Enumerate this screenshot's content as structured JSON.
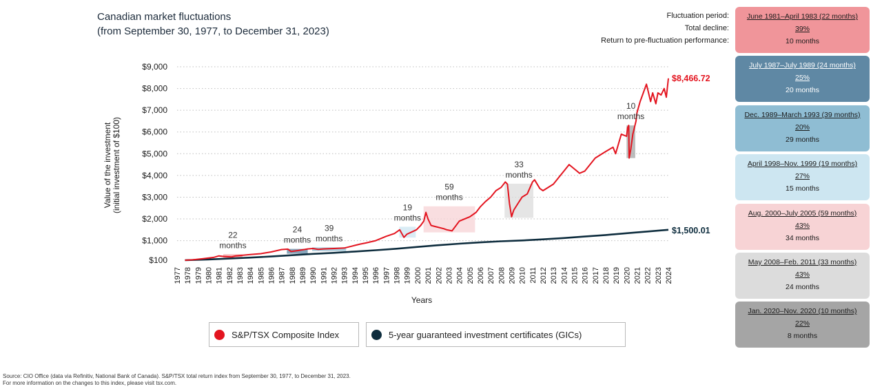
{
  "title": {
    "line1": "Canadian market fluctuations",
    "line2": "(from September 30, 1977, to December 31, 2023)"
  },
  "header_labels": {
    "period": "Fluctuation period:",
    "decline": "Total decline:",
    "return": "Return to pre-fluctuation performance:"
  },
  "fluctuation_boxes": [
    {
      "period": "June 1981–April 1983 (22 months)",
      "decline": "39%",
      "return": "10 months",
      "color": "#f0959a",
      "dark": false
    },
    {
      "period": "July 1987–July 1989 (24 months)",
      "decline": "25%",
      "return": "20 months",
      "color": "#5f88a4",
      "dark": true
    },
    {
      "period": "Dec. 1989–March 1993 (39 months)",
      "decline": "20%",
      "return": "29 months",
      "color": "#8fbdd3",
      "dark": false
    },
    {
      "period": "April 1998–Nov. 1999 (19 months)",
      "decline": "27%",
      "return": "15 months",
      "color": "#cde6f1",
      "dark": false
    },
    {
      "period": "Aug. 2000–July 2005 (59 months)",
      "decline": "43%",
      "return": "34 months",
      "color": "#f7d3d5",
      "dark": false
    },
    {
      "period": "May 2008–Feb. 2011 (33 months)",
      "decline": "43%",
      "return": "24 months",
      "color": "#dcdcdc",
      "dark": false
    },
    {
      "period": "Jan. 2020–Nov. 2020 (10 months)",
      "decline": "22%",
      "return": "8 months",
      "color": "#a5a5a5",
      "dark": false
    }
  ],
  "legend": {
    "tsx": "S&P/TSX Composite Index",
    "gic": "5-year guaranteed investment certificates (GICs)"
  },
  "source": {
    "line1": "Source: CIO Office (data via Refinitiv, National Bank of Canada). S&P/TSX total return index from September 30, 1977, to December 31, 2023.",
    "line2": "For more information on the changes to this index, please visit tsx.com."
  },
  "chart_data": {
    "type": "line",
    "title": "",
    "xlabel": "Years",
    "ylabel": "Value of the investment\n(initial investment of $100)",
    "ylim": [
      100,
      9000
    ],
    "xlim": [
      1977,
      2024
    ],
    "y_ticks": [
      100,
      1000,
      2000,
      3000,
      4000,
      5000,
      6000,
      7000,
      8000,
      9000
    ],
    "y_tick_labels": [
      "$100",
      "$1,000",
      "$2,000",
      "$3,000",
      "$4,000",
      "$5,000",
      "$6,000",
      "$7,000",
      "$8,000",
      "$9,000"
    ],
    "x_tick_labels": [
      "1977",
      "1978",
      "1979",
      "1980",
      "1981",
      "1982",
      "1983",
      "1984",
      "1985",
      "1986",
      "1987",
      "1988",
      "1989",
      "1990",
      "1991",
      "1992",
      "1993",
      "1994",
      "1995",
      "1996",
      "1997",
      "1998",
      "1999",
      "2000",
      "2001",
      "2002",
      "2003",
      "2004",
      "2005",
      "2006",
      "2007",
      "2008",
      "2009",
      "2010",
      "2011",
      "2012",
      "2013",
      "2014",
      "2015",
      "2016",
      "2017",
      "2018",
      "2019",
      "2020",
      "2021",
      "2022",
      "2023",
      "2024"
    ],
    "grid": "horizontal dotted",
    "legend_position": "bottom",
    "series": [
      {
        "name": "S&P/TSX Composite Index",
        "color": "#e3141f",
        "end_label": "$8,466.72",
        "x": [
          1977.75,
          1978.5,
          1979.5,
          1980.5,
          1981.0,
          1981.5,
          1982.2,
          1982.6,
          1983.3,
          1984.0,
          1985.0,
          1986.0,
          1987.0,
          1987.6,
          1987.9,
          1988.5,
          1989.5,
          1990.0,
          1990.5,
          1991.0,
          1992.0,
          1993.0,
          1994.0,
          1994.5,
          1995.0,
          1996.0,
          1997.0,
          1997.8,
          1998.3,
          1998.7,
          1999.0,
          1999.9,
          2000.3,
          2000.6,
          2000.8,
          2001.0,
          2001.3,
          2001.7,
          2002.5,
          2002.8,
          2003.3,
          2004.0,
          2005.0,
          2005.6,
          2006.0,
          2006.5,
          2007.0,
          2007.5,
          2008.0,
          2008.4,
          2008.6,
          2008.8,
          2009.0,
          2009.2,
          2009.6,
          2010.0,
          2010.5,
          2011.0,
          2011.2,
          2011.7,
          2012.0,
          2013.0,
          2013.5,
          2014.0,
          2014.5,
          2015.0,
          2015.5,
          2016.0,
          2016.5,
          2017.0,
          2018.0,
          2018.7,
          2018.95,
          2019.5,
          2020.0,
          2020.1,
          2020.2,
          2020.25,
          2020.4,
          2020.6,
          2020.9,
          2021.0,
          2021.3,
          2021.6,
          2021.9,
          2022.0,
          2022.3,
          2022.5,
          2022.8,
          2023.0,
          2023.3,
          2023.6,
          2023.8,
          2024.0
        ],
        "y": [
          100,
          120,
          170,
          230,
          300,
          270,
          250,
          300,
          330,
          360,
          400,
          480,
          590,
          610,
          500,
          540,
          620,
          640,
          600,
          620,
          640,
          660,
          780,
          840,
          890,
          1000,
          1200,
          1330,
          1500,
          1150,
          1300,
          1500,
          1700,
          1900,
          2300,
          2000,
          1700,
          1650,
          1550,
          1500,
          1450,
          1900,
          2100,
          2300,
          2550,
          2800,
          3000,
          3300,
          3450,
          3700,
          3600,
          2700,
          2100,
          2400,
          2700,
          3000,
          3150,
          3700,
          3800,
          3400,
          3300,
          3600,
          3900,
          4200,
          4500,
          4300,
          4100,
          4200,
          4500,
          4800,
          5100,
          5300,
          5000,
          5900,
          5800,
          6200,
          6300,
          4800,
          5200,
          5900,
          6500,
          6900,
          7400,
          7800,
          8200,
          8000,
          7400,
          7800,
          7300,
          7800,
          7700,
          8000,
          7600,
          8466.72
        ]
      },
      {
        "name": "5-year guaranteed investment certificates (GICs)",
        "color": "#0d2c3d",
        "end_label": "$1,500.01",
        "x": [
          1977.75,
          1980,
          1982,
          1984,
          1986,
          1988,
          1990,
          1992,
          1994,
          1996,
          1998,
          2000,
          2002,
          2004,
          2006,
          2008,
          2010,
          2012,
          2014,
          2016,
          2018,
          2020,
          2022,
          2024
        ],
        "y": [
          100,
          135,
          175,
          220,
          270,
          330,
          390,
          440,
          500,
          560,
          630,
          710,
          790,
          860,
          920,
          970,
          1010,
          1060,
          1120,
          1190,
          1260,
          1340,
          1420,
          1500.01
        ]
      }
    ],
    "annotations": [
      {
        "label": "22\nmonths",
        "start": 1981.42,
        "end": 1983.25,
        "low": 220,
        "high": 370,
        "color": "#f0959a"
      },
      {
        "label": "24\nmonths",
        "start": 1987.5,
        "end": 1989.5,
        "low": 400,
        "high": 620,
        "color": "#5f88a4"
      },
      {
        "label": "39\nmonths",
        "start": 1989.92,
        "end": 1993.17,
        "low": 520,
        "high": 690,
        "color": "#8fbdd3"
      },
      {
        "label": "19\nmonths",
        "start": 1998.25,
        "end": 1999.83,
        "low": 1140,
        "high": 1640,
        "color": "#cde6f1"
      },
      {
        "label": "59\nmonths",
        "start": 2000.58,
        "end": 2005.5,
        "low": 1380,
        "high": 2580,
        "color": "#f7d3d5"
      },
      {
        "label": "33\nmonths",
        "start": 2008.33,
        "end": 2011.08,
        "low": 2050,
        "high": 3620,
        "color": "#dcdcdc"
      },
      {
        "label": "10\nmonths",
        "start": 2020.0,
        "end": 2020.83,
        "low": 4800,
        "high": 6300,
        "color": "#a5a5a5"
      }
    ]
  }
}
